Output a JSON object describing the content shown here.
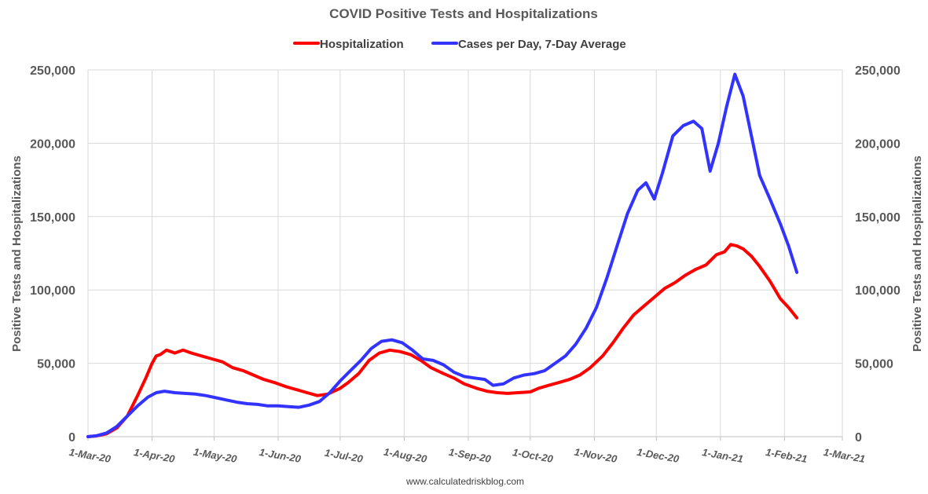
{
  "chart_data": {
    "type": "line",
    "title": "COVID Positive Tests and Hospitalizations",
    "ylabel_left": "Positive Tests and Hospitalizations",
    "ylabel_right": "Positive Tests and Hospitalizations",
    "source_note": "www.calculatedriskblog.com",
    "ylim": [
      0,
      250000
    ],
    "yticks": [
      0,
      50000,
      100000,
      150000,
      200000,
      250000
    ],
    "ytick_labels": [
      "0",
      "50,000",
      "100,000",
      "150,000",
      "200,000",
      "250,000"
    ],
    "xlim": [
      "2020-03-01",
      "2021-03-01"
    ],
    "xtick_labels": [
      "1-Mar-20",
      "1-Apr-20",
      "1-May-20",
      "1-Jun-20",
      "1-Jul-20",
      "1-Aug-20",
      "1-Sep-20",
      "1-Oct-20",
      "1-Nov-20",
      "1-Dec-20",
      "1-Jan-21",
      "1-Feb-21",
      "1-Mar-21"
    ],
    "grid": true,
    "legend_position": "top-center",
    "series": [
      {
        "name": "Hospitalization",
        "color": "#ff0000",
        "points": [
          [
            "2020-03-01",
            0
          ],
          [
            "2020-03-05",
            500
          ],
          [
            "2020-03-10",
            2000
          ],
          [
            "2020-03-15",
            6000
          ],
          [
            "2020-03-20",
            14000
          ],
          [
            "2020-03-25",
            28000
          ],
          [
            "2020-03-29",
            40000
          ],
          [
            "2020-04-01",
            50000
          ],
          [
            "2020-04-03",
            55000
          ],
          [
            "2020-04-05",
            56000
          ],
          [
            "2020-04-08",
            59000
          ],
          [
            "2020-04-12",
            57000
          ],
          [
            "2020-04-16",
            59000
          ],
          [
            "2020-04-20",
            57000
          ],
          [
            "2020-04-25",
            55000
          ],
          [
            "2020-04-30",
            53000
          ],
          [
            "2020-05-05",
            51000
          ],
          [
            "2020-05-10",
            47000
          ],
          [
            "2020-05-15",
            45000
          ],
          [
            "2020-05-20",
            42000
          ],
          [
            "2020-05-25",
            39000
          ],
          [
            "2020-05-30",
            37000
          ],
          [
            "2020-06-05",
            34000
          ],
          [
            "2020-06-10",
            32000
          ],
          [
            "2020-06-15",
            30000
          ],
          [
            "2020-06-20",
            28000
          ],
          [
            "2020-06-25",
            29000
          ],
          [
            "2020-07-01",
            33000
          ],
          [
            "2020-07-05",
            37000
          ],
          [
            "2020-07-10",
            43000
          ],
          [
            "2020-07-15",
            52000
          ],
          [
            "2020-07-20",
            57000
          ],
          [
            "2020-07-25",
            59000
          ],
          [
            "2020-07-30",
            58000
          ],
          [
            "2020-08-04",
            56000
          ],
          [
            "2020-08-09",
            52000
          ],
          [
            "2020-08-14",
            47000
          ],
          [
            "2020-08-20",
            43000
          ],
          [
            "2020-08-25",
            40000
          ],
          [
            "2020-08-30",
            36000
          ],
          [
            "2020-09-05",
            33000
          ],
          [
            "2020-09-10",
            31000
          ],
          [
            "2020-09-15",
            30000
          ],
          [
            "2020-09-20",
            29500
          ],
          [
            "2020-09-25",
            30000
          ],
          [
            "2020-10-01",
            30500
          ],
          [
            "2020-10-05",
            33000
          ],
          [
            "2020-10-10",
            35000
          ],
          [
            "2020-10-15",
            37000
          ],
          [
            "2020-10-20",
            39000
          ],
          [
            "2020-10-25",
            42000
          ],
          [
            "2020-10-30",
            47000
          ],
          [
            "2020-11-05",
            55000
          ],
          [
            "2020-11-10",
            64000
          ],
          [
            "2020-11-15",
            74000
          ],
          [
            "2020-11-20",
            83000
          ],
          [
            "2020-11-25",
            89000
          ],
          [
            "2020-11-30",
            95000
          ],
          [
            "2020-12-05",
            101000
          ],
          [
            "2020-12-10",
            105000
          ],
          [
            "2020-12-15",
            110000
          ],
          [
            "2020-12-20",
            114000
          ],
          [
            "2020-12-25",
            117000
          ],
          [
            "2020-12-30",
            124000
          ],
          [
            "2021-01-03",
            126000
          ],
          [
            "2021-01-06",
            131000
          ],
          [
            "2021-01-09",
            130000
          ],
          [
            "2021-01-12",
            128000
          ],
          [
            "2021-01-16",
            123000
          ],
          [
            "2021-01-20",
            116000
          ],
          [
            "2021-01-25",
            106000
          ],
          [
            "2021-01-30",
            94000
          ],
          [
            "2021-02-03",
            88000
          ],
          [
            "2021-02-07",
            81000
          ]
        ]
      },
      {
        "name": "Cases per Day, 7-Day Average",
        "color": "#3333ff",
        "points": [
          [
            "2020-03-01",
            0
          ],
          [
            "2020-03-05",
            600
          ],
          [
            "2020-03-10",
            2500
          ],
          [
            "2020-03-15",
            7000
          ],
          [
            "2020-03-20",
            14000
          ],
          [
            "2020-03-25",
            21000
          ],
          [
            "2020-03-30",
            27000
          ],
          [
            "2020-04-03",
            30000
          ],
          [
            "2020-04-07",
            31000
          ],
          [
            "2020-04-12",
            30000
          ],
          [
            "2020-04-17",
            29500
          ],
          [
            "2020-04-22",
            29000
          ],
          [
            "2020-04-27",
            28000
          ],
          [
            "2020-05-02",
            26500
          ],
          [
            "2020-05-07",
            25000
          ],
          [
            "2020-05-12",
            23500
          ],
          [
            "2020-05-17",
            22500
          ],
          [
            "2020-05-22",
            22000
          ],
          [
            "2020-05-27",
            21000
          ],
          [
            "2020-06-01",
            21000
          ],
          [
            "2020-06-06",
            20500
          ],
          [
            "2020-06-11",
            20000
          ],
          [
            "2020-06-16",
            21500
          ],
          [
            "2020-06-21",
            24000
          ],
          [
            "2020-06-26",
            30000
          ],
          [
            "2020-07-01",
            38000
          ],
          [
            "2020-07-06",
            45000
          ],
          [
            "2020-07-11",
            52000
          ],
          [
            "2020-07-16",
            60000
          ],
          [
            "2020-07-21",
            65000
          ],
          [
            "2020-07-26",
            66000
          ],
          [
            "2020-07-31",
            64000
          ],
          [
            "2020-08-05",
            59000
          ],
          [
            "2020-08-10",
            53000
          ],
          [
            "2020-08-15",
            52000
          ],
          [
            "2020-08-20",
            49000
          ],
          [
            "2020-08-25",
            44000
          ],
          [
            "2020-08-30",
            41000
          ],
          [
            "2020-09-04",
            40000
          ],
          [
            "2020-09-09",
            39000
          ],
          [
            "2020-09-13",
            35000
          ],
          [
            "2020-09-18",
            36000
          ],
          [
            "2020-09-23",
            40000
          ],
          [
            "2020-09-28",
            42000
          ],
          [
            "2020-10-03",
            43000
          ],
          [
            "2020-10-08",
            45000
          ],
          [
            "2020-10-13",
            50000
          ],
          [
            "2020-10-18",
            55000
          ],
          [
            "2020-10-23",
            63000
          ],
          [
            "2020-10-28",
            74000
          ],
          [
            "2020-11-02",
            88000
          ],
          [
            "2020-11-07",
            108000
          ],
          [
            "2020-11-12",
            130000
          ],
          [
            "2020-11-17",
            152000
          ],
          [
            "2020-11-22",
            168000
          ],
          [
            "2020-11-26",
            173000
          ],
          [
            "2020-11-30",
            162000
          ],
          [
            "2020-12-04",
            180000
          ],
          [
            "2020-12-09",
            205000
          ],
          [
            "2020-12-14",
            212000
          ],
          [
            "2020-12-19",
            215000
          ],
          [
            "2020-12-23",
            210000
          ],
          [
            "2020-12-27",
            181000
          ],
          [
            "2020-12-31",
            200000
          ],
          [
            "2021-01-04",
            225000
          ],
          [
            "2021-01-08",
            247000
          ],
          [
            "2021-01-12",
            232000
          ],
          [
            "2021-01-16",
            205000
          ],
          [
            "2021-01-20",
            178000
          ],
          [
            "2021-01-25",
            162000
          ],
          [
            "2021-01-30",
            145000
          ],
          [
            "2021-02-03",
            130000
          ],
          [
            "2021-02-07",
            112000
          ]
        ]
      }
    ]
  }
}
